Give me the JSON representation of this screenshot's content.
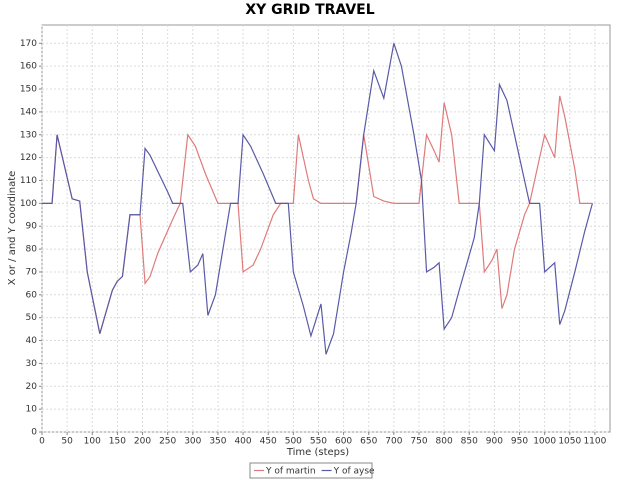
{
  "chart_data": {
    "type": "line",
    "title": "XY GRID TRAVEL",
    "x_label": "Time (steps)",
    "y_label": "X or / and Y coordinate",
    "xlim": [
      0,
      1130
    ],
    "ylim": [
      0,
      178
    ],
    "xticks": [
      0,
      50,
      100,
      150,
      200,
      250,
      300,
      350,
      400,
      450,
      500,
      550,
      600,
      650,
      700,
      750,
      800,
      850,
      900,
      950,
      1000,
      1050,
      1100
    ],
    "yticks": [
      0,
      10,
      20,
      30,
      40,
      50,
      60,
      70,
      80,
      90,
      100,
      110,
      120,
      130,
      140,
      150,
      160,
      170
    ],
    "grid": true,
    "legend": "bottom",
    "series": [
      {
        "name": "Y of martin",
        "color": "#e07a7a",
        "x": [
          0,
          20,
          30,
          60,
          75,
          90,
          115,
          140,
          150,
          160,
          175,
          195,
          205,
          215,
          230,
          260,
          275,
          290,
          305,
          325,
          350,
          390,
          400,
          420,
          435,
          460,
          475,
          500,
          510,
          530,
          540,
          555,
          625,
          640,
          660,
          680,
          700,
          750,
          765,
          780,
          790,
          800,
          815,
          830,
          870,
          880,
          895,
          905,
          915,
          925,
          940,
          960,
          970,
          1000,
          1010,
          1020,
          1030,
          1040,
          1060,
          1070,
          1095
        ],
        "values": [
          100,
          100,
          130,
          102,
          101,
          70,
          43,
          62,
          66,
          68,
          95,
          95,
          65,
          68,
          78,
          93,
          100,
          130,
          125,
          113,
          100,
          100,
          70,
          73,
          80,
          95,
          100,
          100,
          130,
          110,
          102,
          100,
          100,
          130,
          103,
          101,
          100,
          100,
          130,
          123,
          118,
          144,
          130,
          100,
          100,
          70,
          75,
          80,
          54,
          60,
          80,
          95,
          100,
          130,
          125,
          120,
          147,
          138,
          115,
          100,
          100
        ]
      },
      {
        "name": "Y of ayse",
        "color": "#5a5aa8",
        "x": [
          0,
          20,
          30,
          60,
          75,
          90,
          115,
          140,
          150,
          160,
          175,
          195,
          205,
          215,
          250,
          260,
          280,
          295,
          310,
          320,
          330,
          345,
          360,
          375,
          390,
          400,
          415,
          440,
          465,
          490,
          500,
          520,
          535,
          555,
          565,
          580,
          600,
          615,
          625,
          640,
          660,
          680,
          700,
          715,
          740,
          755,
          765,
          780,
          790,
          800,
          815,
          830,
          860,
          870,
          880,
          900,
          910,
          925,
          945,
          965,
          970,
          990,
          1000,
          1020,
          1030,
          1040,
          1060,
          1080,
          1095
        ],
        "values": [
          100,
          100,
          130,
          102,
          101,
          70,
          43,
          62,
          66,
          68,
          95,
          95,
          124,
          121,
          105,
          100,
          100,
          70,
          73,
          78,
          51,
          60,
          80,
          100,
          100,
          130,
          125,
          113,
          100,
          100,
          70,
          55,
          42,
          56,
          34,
          43,
          70,
          87,
          100,
          130,
          158,
          146,
          170,
          160,
          130,
          110,
          70,
          72,
          74,
          45,
          50,
          62,
          85,
          100,
          130,
          123,
          152,
          145,
          125,
          105,
          100,
          100,
          70,
          74,
          47,
          53,
          70,
          88,
          100
        ]
      }
    ]
  }
}
